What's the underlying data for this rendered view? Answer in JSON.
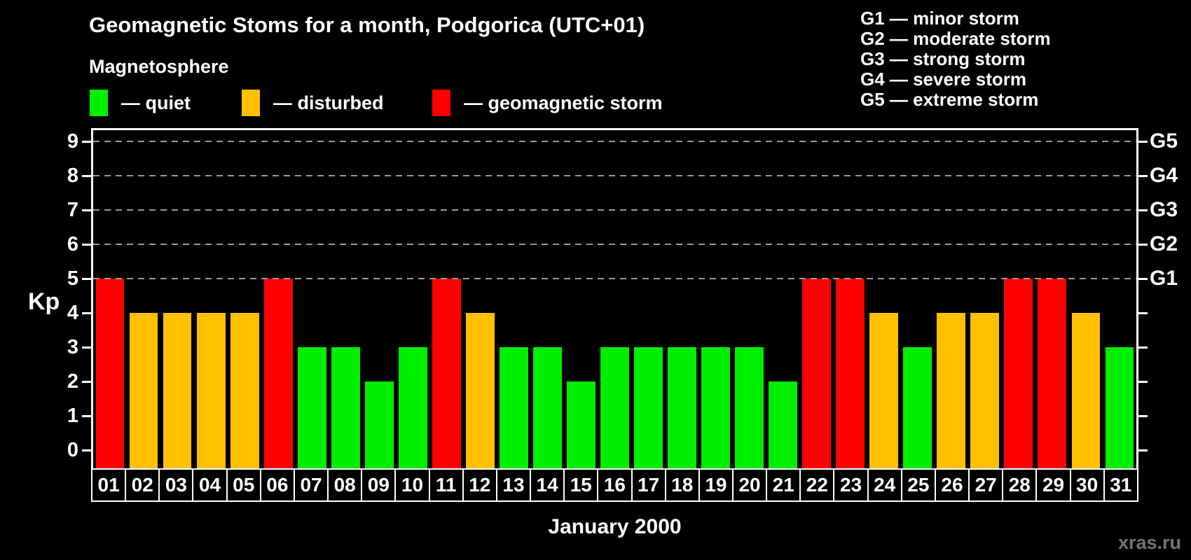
{
  "title": "Geomagnetic Stoms for a month, Podgorica (UTC+01)",
  "magnetosphere_legend": {
    "heading": "Magnetosphere",
    "items": [
      {
        "name": "quiet",
        "label": "— quiet",
        "color": "#00EE00"
      },
      {
        "name": "disturbed",
        "label": "— disturbed",
        "color": "#FFC000"
      },
      {
        "name": "storm",
        "label": "— geomagnetic storm",
        "color": "#FF0000"
      }
    ]
  },
  "g_scale_legend": [
    "G1 — minor storm",
    "G2 — moderate storm",
    "G3 — strong storm",
    "G4 — severe storm",
    "G5 — extreme storm"
  ],
  "watermark": "xras.ru",
  "chart_data": {
    "type": "bar",
    "title": "Geomagnetic Stoms for a month, Podgorica (UTC+01)",
    "xlabel": "January 2000",
    "ylabel": "Kp",
    "ylim": [
      0,
      9
    ],
    "grid": "dashed horizontal lines at Kp 5-9 only",
    "legend_position": "top",
    "categories": [
      "01",
      "02",
      "03",
      "04",
      "05",
      "06",
      "07",
      "08",
      "09",
      "10",
      "11",
      "12",
      "13",
      "14",
      "15",
      "16",
      "17",
      "18",
      "19",
      "20",
      "21",
      "22",
      "23",
      "24",
      "25",
      "26",
      "27",
      "28",
      "29",
      "30",
      "31"
    ],
    "values": [
      5,
      4,
      4,
      4,
      4,
      5,
      3,
      3,
      2,
      3,
      5,
      4,
      3,
      3,
      2,
      3,
      3,
      3,
      3,
      3,
      2,
      5,
      5,
      4,
      3,
      4,
      4,
      5,
      5,
      4,
      3
    ],
    "y_ticks": [
      0,
      1,
      2,
      3,
      4,
      5,
      6,
      7,
      8,
      9
    ],
    "right_axis_labels": [
      {
        "kp": 5,
        "label": "G1"
      },
      {
        "kp": 6,
        "label": "G2"
      },
      {
        "kp": 7,
        "label": "G3"
      },
      {
        "kp": 8,
        "label": "G4"
      },
      {
        "kp": 9,
        "label": "G5"
      }
    ],
    "color_rule": {
      "quiet_max_kp": 3,
      "disturbed_kp": 4,
      "storm_min_kp": 5
    },
    "colors": {
      "quiet": "#00EE00",
      "disturbed": "#FFC000",
      "storm": "#FF0000",
      "gridline": "#9A9A9A",
      "axis": "#FFFFFF"
    }
  }
}
